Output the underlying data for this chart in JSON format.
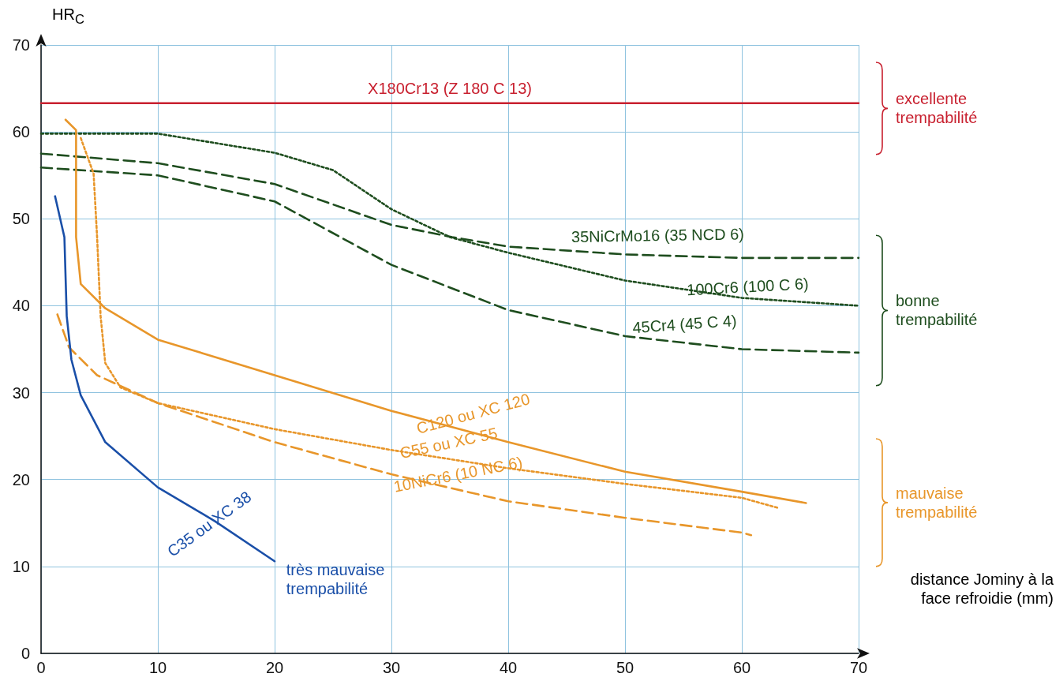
{
  "chart_data": {
    "type": "line",
    "xlabel": "distance Jominy à la face refroidie (mm)",
    "ylabel": "HR$_{C}$",
    "xlim": [
      0,
      70
    ],
    "xticks": [
      0,
      10,
      20,
      30,
      40,
      50,
      60,
      70
    ],
    "ylim": [
      0,
      70
    ],
    "yticks": [
      0,
      10,
      20,
      30,
      40,
      50,
      60,
      70
    ],
    "grid": true,
    "legend": false,
    "marker": "none",
    "series": [
      {
        "name": "X180Cr13 (Z 180 C 13)",
        "color": "#c8202f",
        "line_style": "solid",
        "x": [
          0,
          70
        ],
        "values": [
          63.3,
          63.3
        ]
      },
      {
        "name": "35NiCrMo16 (35 NCD 6)",
        "color": "#1e4d1e",
        "line_style": "dashed",
        "x": [
          0,
          10,
          20,
          30,
          35.2,
          40,
          50,
          60,
          70
        ],
        "values": [
          57.5,
          56.4,
          54,
          49.3,
          47.9,
          46.8,
          45.9,
          45.5,
          45.5
        ]
      },
      {
        "name": "100Cr6 (100 C 6)",
        "color": "#1e4d1e",
        "line_style": "dotted",
        "x": [
          0,
          10,
          20,
          25,
          30,
          35,
          40,
          50,
          60,
          70
        ],
        "values": [
          59.8,
          59.8,
          57.6,
          55.6,
          51.1,
          47.9,
          46.1,
          42.9,
          40.9,
          40
        ]
      },
      {
        "name": "45Cr4 (45 C 4)",
        "color": "#1e4d1e",
        "line_style": "dashed",
        "x": [
          0,
          10,
          20,
          30,
          40,
          50,
          60,
          70
        ],
        "values": [
          55.9,
          55,
          52,
          44.7,
          39.5,
          36.5,
          35,
          34.6
        ]
      },
      {
        "name": "C120 ou XC 120",
        "color": "#e8962a",
        "line_style": "solid",
        "x": [
          2.1,
          3,
          3,
          3.4,
          5.5,
          10,
          20,
          30,
          40,
          50,
          60,
          65.5
        ],
        "values": [
          61.4,
          60.2,
          47.9,
          42.5,
          39.7,
          36.1,
          32,
          27.9,
          24.3,
          20.9,
          18.6,
          17.3
        ]
      },
      {
        "name": "C55 ou XC 55",
        "color": "#e8962a",
        "line_style": "dotted",
        "x": [
          3.4,
          4.5,
          4.8,
          5.1,
          5.5,
          6.8,
          10,
          20,
          30,
          40,
          50,
          60,
          63.2
        ],
        "values": [
          59.3,
          55.2,
          47.9,
          38.8,
          33.4,
          30.6,
          28.8,
          25.8,
          23.4,
          21.3,
          19.5,
          17.9,
          16.7
        ]
      },
      {
        "name": "10NiCr6 (10 NC 6)",
        "color": "#e8962a",
        "line_style": "dashed",
        "x": [
          1.4,
          2.4,
          4.8,
          10,
          20,
          30,
          40,
          50,
          60,
          60.8
        ],
        "values": [
          39,
          35.2,
          32,
          28.8,
          24.3,
          20.6,
          17.5,
          15.6,
          13.9,
          13.6
        ]
      },
      {
        "name": "C35 ou XC 38",
        "color": "#1a4fa8",
        "line_style": "solid",
        "x": [
          1.2,
          2,
          2.2,
          2.6,
          3.4,
          5.5,
          10,
          14.9,
          20
        ],
        "values": [
          52.6,
          47.9,
          38.8,
          33.8,
          29.7,
          24.3,
          19.1,
          15.2,
          10.6
        ]
      }
    ],
    "annotations": [
      "excellente trempabilité",
      "bonne trempabilité",
      "mauvaise trempabilité",
      "très mauvaise trempabilité"
    ]
  }
}
